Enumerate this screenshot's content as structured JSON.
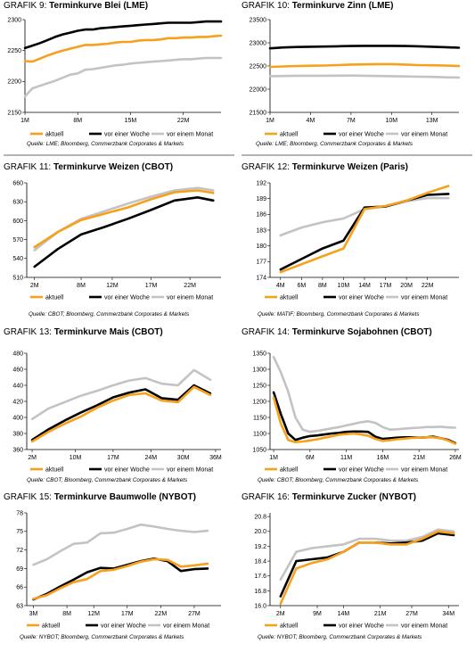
{
  "charts": [
    {
      "number_prefix": "GRAFIK 9:",
      "title": "Terminkurve Blei (LME)",
      "source": "Quelle: LME; Bloomberg, Commerzbank Corporates & Markets",
      "legend": [
        "aktuell",
        "vor einer Woche",
        "vor einem Monat"
      ],
      "colors": {
        "aktuell": "#f7a01c",
        "vor einer Woche": "#000000",
        "vor einem Monat": "#c3c3c3"
      }
    },
    {
      "number_prefix": "GRAFIK 10:",
      "title": "Terminkurve Zinn (LME)",
      "source": "Quelle: LME; Bloomberg, Commerzbank Corporates & Markets",
      "legend": [
        "aktuell",
        "vor einer Woche",
        "vor einem Monat"
      ]
    },
    {
      "number_prefix": "GRAFIK 11:",
      "title": "Terminkurve Weizen (CBOT)",
      "source": "Quelle: CBOT; Bloomberg, Commerzbank Corporates & Markets",
      "legend": [
        "aktuell",
        "vor einer Woche",
        "vor einem Monat"
      ]
    },
    {
      "number_prefix": "GRAFIK 12:",
      "title": "Terminkurve Weizen (Paris)",
      "source": "Quelle: MATIF; Bloomberg, Commerzbank Corporates & Markets",
      "legend": [
        "aktuell",
        "vor einer Woche",
        "vor einem Monat"
      ]
    },
    {
      "number_prefix": "GRAFIK 13:",
      "title": "Terminkurve Mais (CBOT)",
      "source": "Quelle: CBOT; Bloomberg, Commerzbank Corporates & Markets",
      "legend": [
        "aktuell",
        "vor einer Woche",
        "vor einem Monat"
      ]
    },
    {
      "number_prefix": "GRAFIK 14:",
      "title": "Terminkurve Sojabohnen (CBOT)",
      "source": "Quelle: CBOT; Bloomberg, Commerzbank Corporates & Markets",
      "legend": [
        "aktuell",
        "vor einer Woche",
        "vor einem Monat"
      ]
    },
    {
      "number_prefix": "GRAFIK 15:",
      "title": "Terminkurve Baumwolle (NYBOT)",
      "source": "Quelle: NYBOT; Bloomberg, Commerzbank Corporates & Markets",
      "legend": [
        "aktuell",
        "vor einer Woche",
        "vor einem Monat"
      ]
    },
    {
      "number_prefix": "GRAFIK 16:",
      "title": "Terminkurve Zucker (NYBOT)",
      "source": "Quelle: NYBOT; Bloomberg, Commerzbank Corporates & Markets",
      "legend": [
        "aktuell",
        "vor einer Woche",
        "vor einem Monat"
      ]
    }
  ],
  "chart_data": [
    {
      "type": "line",
      "title": "Terminkurve Blei (LME)",
      "x": [
        1,
        2,
        3,
        4,
        5,
        6,
        7,
        8,
        9,
        10,
        11,
        12,
        13,
        14,
        15,
        16,
        17,
        18,
        19,
        20,
        21,
        22,
        23,
        24,
        25,
        26,
        27
      ],
      "xlim": [
        1,
        27
      ],
      "xticks": [
        {
          "v": 1,
          "l": "1M"
        },
        {
          "v": 8,
          "l": "8M"
        },
        {
          "v": 15,
          "l": "15M"
        },
        {
          "v": 22,
          "l": "22M"
        }
      ],
      "ylim": [
        2150,
        2300
      ],
      "yticks": [
        2150,
        2200,
        2250,
        2300
      ],
      "series": [
        {
          "name": "vor einem Monat",
          "values": [
            2176,
            2189,
            2193,
            2197,
            2201,
            2206,
            2211,
            2213,
            2219,
            2220,
            2222,
            2224,
            2226,
            2227,
            2229,
            2230,
            2231,
            2232,
            2233,
            2234,
            2235,
            2236,
            2236,
            2237,
            2238,
            2238,
            2238
          ]
        },
        {
          "name": "vor einer Woche",
          "values": [
            2254,
            2258,
            2262,
            2267,
            2272,
            2276,
            2279,
            2282,
            2284,
            2284,
            2286,
            2287,
            2288,
            2289,
            2290,
            2291,
            2292,
            2293,
            2294,
            2295,
            2295,
            2295,
            2295,
            2296,
            2297,
            2297,
            2297
          ]
        },
        {
          "name": "aktuell",
          "values": [
            2233,
            2232,
            2237,
            2242,
            2246,
            2250,
            2253,
            2256,
            2259,
            2259,
            2260,
            2261,
            2263,
            2264,
            2264,
            2266,
            2267,
            2267,
            2268,
            2270,
            2270,
            2271,
            2271,
            2272,
            2272,
            2273,
            2274
          ]
        }
      ]
    },
    {
      "type": "line",
      "title": "Terminkurve Zinn (LME)",
      "x": [
        1,
        2,
        3,
        4,
        5,
        6,
        7,
        8,
        9,
        10,
        11,
        12,
        13,
        14,
        15
      ],
      "xlim": [
        1,
        15
      ],
      "xticks": [
        {
          "v": 1,
          "l": "1M"
        },
        {
          "v": 4,
          "l": "4M"
        },
        {
          "v": 7,
          "l": "7M"
        },
        {
          "v": 10,
          "l": "10M"
        },
        {
          "v": 13,
          "l": "13M"
        }
      ],
      "ylim": [
        21500,
        23500
      ],
      "yticks": [
        21500,
        22000,
        22500,
        23000,
        23500
      ],
      "series": [
        {
          "name": "vor einem Monat",
          "values": [
            22280,
            22285,
            22290,
            22290,
            22290,
            22292,
            22295,
            22290,
            22285,
            22280,
            22275,
            22270,
            22265,
            22255,
            22250
          ]
        },
        {
          "name": "vor einer Woche",
          "values": [
            22880,
            22900,
            22910,
            22915,
            22920,
            22925,
            22930,
            22935,
            22935,
            22935,
            22930,
            22925,
            22915,
            22905,
            22895
          ]
        },
        {
          "name": "aktuell",
          "values": [
            22480,
            22490,
            22500,
            22505,
            22510,
            22520,
            22530,
            22535,
            22540,
            22540,
            22530,
            22520,
            22515,
            22510,
            22500
          ]
        }
      ]
    },
    {
      "type": "line",
      "title": "Terminkurve Weizen (CBOT)",
      "x": [
        2,
        5,
        8,
        11,
        14,
        17,
        20,
        23,
        25
      ],
      "xlim": [
        1,
        26
      ],
      "xticks": [
        {
          "v": 2,
          "l": "2M"
        },
        {
          "v": 8,
          "l": "8M"
        },
        {
          "v": 12,
          "l": "12M"
        },
        {
          "v": 17,
          "l": "17M"
        },
        {
          "v": 22,
          "l": "22M"
        }
      ],
      "ylim": [
        510,
        660
      ],
      "yticks": [
        510,
        540,
        570,
        600,
        630,
        660
      ],
      "series": [
        {
          "name": "vor einem Monat",
          "values": [
            553,
            582,
            603,
            615,
            627,
            638,
            648,
            652,
            648
          ]
        },
        {
          "name": "vor einer Woche",
          "values": [
            527,
            555,
            578,
            590,
            603,
            617,
            632,
            637,
            632
          ]
        },
        {
          "name": "aktuell",
          "values": [
            558,
            582,
            601,
            611,
            621,
            634,
            645,
            648,
            644
          ]
        }
      ]
    },
    {
      "type": "line",
      "title": "Terminkurve Weizen (Paris)",
      "x": [
        1,
        2,
        3,
        4,
        5,
        6,
        7,
        8,
        9
      ],
      "xlim": [
        0.5,
        9.5
      ],
      "xticks": [
        {
          "v": 1,
          "l": "4M"
        },
        {
          "v": 2,
          "l": "6M"
        },
        {
          "v": 3,
          "l": "8M"
        },
        {
          "v": 4,
          "l": "10M"
        },
        {
          "v": 5,
          "l": "14M"
        },
        {
          "v": 6,
          "l": "17M"
        },
        {
          "v": 7,
          "l": "20M"
        },
        {
          "v": 8,
          "l": "22M"
        }
      ],
      "ylim": [
        174,
        192
      ],
      "yticks": [
        174,
        177,
        180,
        183,
        186,
        189,
        192
      ],
      "series": [
        {
          "name": "vor einem Monat",
          "values": [
            182,
            183.5,
            184.5,
            185.2,
            187,
            187.5,
            188.5,
            189.1,
            189.1
          ]
        },
        {
          "name": "vor einer Woche",
          "values": [
            175.5,
            177.5,
            179.5,
            181,
            187.3,
            187.5,
            188.6,
            189.7,
            189.9
          ]
        },
        {
          "name": "aktuell",
          "values": [
            175,
            176.5,
            178,
            179.5,
            187,
            187.6,
            188.6,
            190.1,
            191.4
          ]
        }
      ]
    },
    {
      "type": "line",
      "title": "Terminkurve Mais (CBOT)",
      "x": [
        2,
        5,
        8,
        11,
        14,
        17,
        20,
        23,
        26,
        29,
        32,
        35
      ],
      "xlim": [
        1,
        37
      ],
      "xticks": [
        {
          "v": 2,
          "l": "2M"
        },
        {
          "v": 10,
          "l": "10M"
        },
        {
          "v": 17,
          "l": "17M"
        },
        {
          "v": 24,
          "l": "24M"
        },
        {
          "v": 30,
          "l": "30M"
        },
        {
          "v": 36,
          "l": "36M"
        }
      ],
      "ylim": [
        360,
        480
      ],
      "yticks": [
        360,
        380,
        400,
        420,
        440,
        460,
        480
      ],
      "series": [
        {
          "name": "vor einem Monat",
          "values": [
            398,
            411,
            419,
            427,
            433,
            440,
            446,
            449,
            442,
            440,
            459,
            447
          ]
        },
        {
          "name": "vor einer Woche",
          "values": [
            372,
            385,
            396,
            406,
            415,
            425,
            431,
            435,
            424,
            422,
            440,
            430
          ]
        },
        {
          "name": "aktuell",
          "values": [
            370,
            382,
            392,
            401,
            412,
            421,
            428,
            430,
            421,
            419,
            438,
            428
          ]
        }
      ]
    },
    {
      "type": "line",
      "title": "Terminkurve Sojabohnen (CBOT)",
      "x": [
        1,
        2,
        3,
        4,
        5,
        6,
        7,
        8,
        9,
        10,
        11,
        12,
        13,
        14,
        15,
        16,
        17,
        18,
        19,
        20,
        21,
        22,
        23,
        24,
        25,
        26
      ],
      "xlim": [
        0.5,
        26.5
      ],
      "xticks": [
        {
          "v": 1,
          "l": "1M"
        },
        {
          "v": 6,
          "l": "6M"
        },
        {
          "v": 11,
          "l": "11M"
        },
        {
          "v": 16,
          "l": "16M"
        },
        {
          "v": 21,
          "l": "21M"
        },
        {
          "v": 26,
          "l": "26M"
        }
      ],
      "ylim": [
        1050,
        1350
      ],
      "yticks": [
        1050,
        1100,
        1150,
        1200,
        1250,
        1300,
        1350
      ],
      "series": [
        {
          "name": "vor einem Monat",
          "values": [
            1338,
            1290,
            1230,
            1150,
            1112,
            1105,
            1108,
            1112,
            1116,
            1120,
            1125,
            1130,
            1135,
            1138,
            1133,
            1120,
            1112,
            1113,
            1115,
            1117,
            1118,
            1120,
            1120,
            1121,
            1119,
            1118
          ]
        },
        {
          "name": "vor einer Woche",
          "values": [
            1228,
            1160,
            1100,
            1080,
            1087,
            1092,
            1094,
            1097,
            1100,
            1102,
            1105,
            1106,
            1106,
            1105,
            1090,
            1083,
            1085,
            1087,
            1088,
            1088,
            1087,
            1088,
            1090,
            1085,
            1080,
            1070
          ]
        },
        {
          "name": "aktuell",
          "values": [
            1212,
            1130,
            1080,
            1073,
            1075,
            1078,
            1082,
            1087,
            1091,
            1096,
            1098,
            1100,
            1097,
            1093,
            1083,
            1077,
            1079,
            1082,
            1084,
            1086,
            1087,
            1088,
            1088,
            1085,
            1078,
            1068
          ]
        }
      ]
    },
    {
      "type": "line",
      "title": "Terminkurve Baumwolle (NYBOT)",
      "x": [
        3,
        5,
        7,
        9,
        11,
        13,
        15,
        17,
        19,
        21,
        23,
        25,
        27,
        29
      ],
      "xlim": [
        2,
        31
      ],
      "xticks": [
        {
          "v": 3,
          "l": "3M"
        },
        {
          "v": 8,
          "l": "8M"
        },
        {
          "v": 12,
          "l": "12M"
        },
        {
          "v": 17,
          "l": "17M"
        },
        {
          "v": 22,
          "l": "22M"
        },
        {
          "v": 27,
          "l": "27M"
        }
      ],
      "ylim": [
        63,
        78
      ],
      "yticks": [
        63,
        66,
        69,
        72,
        75,
        78
      ],
      "series": [
        {
          "name": "vor einem Monat",
          "values": [
            69.6,
            70.5,
            71.8,
            73.0,
            73.2,
            74.7,
            74.8,
            75.4,
            76.1,
            75.8,
            75.4,
            75.1,
            74.9,
            75.1
          ]
        },
        {
          "name": "vor einer Woche",
          "values": [
            64.0,
            64.9,
            66.1,
            67.2,
            68.4,
            69.1,
            69.0,
            69.6,
            70.2,
            70.6,
            70.2,
            68.6,
            68.9,
            69.0
          ]
        },
        {
          "name": "aktuell",
          "values": [
            64.1,
            64.7,
            65.8,
            66.8,
            67.3,
            68.6,
            68.8,
            69.4,
            70.1,
            70.5,
            70.4,
            69.3,
            69.5,
            69.8
          ]
        }
      ]
    },
    {
      "type": "line",
      "title": "Terminkurve Zucker (NYBOT)",
      "x": [
        2,
        5,
        8,
        11,
        14,
        17,
        20,
        23,
        26,
        29,
        32,
        35
      ],
      "xlim": [
        0,
        36
      ],
      "xticks": [
        {
          "v": 2,
          "l": "2M"
        },
        {
          "v": 9,
          "l": "9M"
        },
        {
          "v": 14,
          "l": "14M"
        },
        {
          "v": 21,
          "l": "21M"
        },
        {
          "v": 27,
          "l": "27M"
        },
        {
          "v": 34,
          "l": "34M"
        }
      ],
      "ylim": [
        16.0,
        21.0
      ],
      "yticks": [
        16.0,
        16.8,
        17.6,
        18.4,
        19.2,
        20.0,
        20.8
      ],
      "series": [
        {
          "name": "vor einem Monat",
          "values": [
            17.4,
            18.9,
            19.1,
            19.2,
            19.3,
            19.6,
            19.6,
            19.5,
            19.5,
            19.7,
            20.1,
            20.0
          ]
        },
        {
          "name": "vor einer Woche",
          "values": [
            16.5,
            18.4,
            18.5,
            18.6,
            18.9,
            19.4,
            19.4,
            19.35,
            19.4,
            19.5,
            19.9,
            19.8
          ]
        },
        {
          "name": "aktuell",
          "values": [
            16.1,
            18.0,
            18.3,
            18.5,
            18.9,
            19.4,
            19.4,
            19.3,
            19.3,
            19.6,
            20.0,
            19.9
          ]
        }
      ]
    }
  ]
}
